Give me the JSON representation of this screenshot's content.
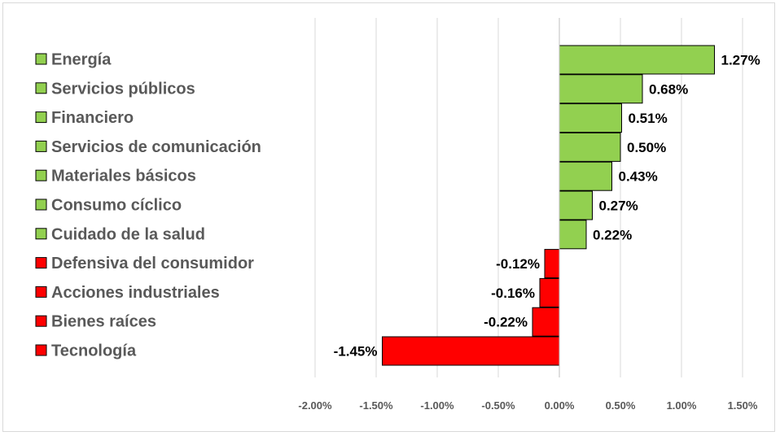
{
  "chart_data": {
    "type": "bar",
    "orientation": "horizontal",
    "title": "",
    "xlabel": "",
    "ylabel": "",
    "categories": [
      "Energía",
      "Servicios públicos",
      "Financiero",
      "Servicios de comunicación",
      "Materiales básicos",
      "Consumo cíclico",
      "Cuidado de la salud",
      "Defensiva del consumidor",
      "Acciones industriales",
      "Bienes raíces",
      "Tecnología"
    ],
    "values": [
      1.27,
      0.68,
      0.51,
      0.5,
      0.43,
      0.27,
      0.22,
      -0.12,
      -0.16,
      -0.22,
      -1.45
    ],
    "value_labels": [
      "1.27%",
      "0.68%",
      "0.51%",
      "0.50%",
      "0.43%",
      "0.27%",
      "0.22%",
      "-0.12%",
      "-0.16%",
      "-0.22%",
      "-1.45%"
    ],
    "xlim": [
      -2.0,
      1.5
    ],
    "xticks": [
      -2.0,
      -1.5,
      -1.0,
      -0.5,
      0.0,
      0.5,
      1.0,
      1.5
    ],
    "xtick_labels": [
      "-2.00%",
      "-1.50%",
      "-1.00%",
      "-0.50%",
      "0.00%",
      "0.50%",
      "1.00%",
      "1.50%"
    ],
    "grid": true,
    "legend_position": "left",
    "colors": {
      "positive": "#92d050",
      "negative": "#ff0000"
    }
  }
}
